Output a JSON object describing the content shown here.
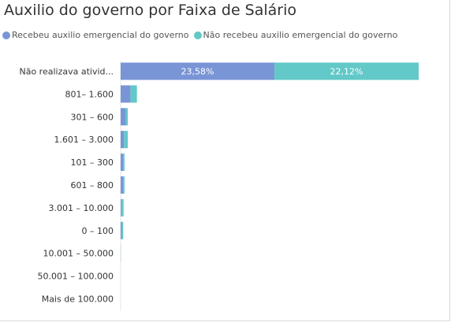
{
  "chart_data": {
    "type": "bar",
    "orientation": "horizontal",
    "stacked": true,
    "title": "Auxilio do governo por Faixa de Salário",
    "categories": [
      "Não realizava ativid...",
      "801– 1.600",
      "301 – 600",
      "1.601 – 3.000",
      "101 – 300",
      "601 – 800",
      "3.001 – 10.000",
      "0 – 100",
      "10.001 – 50.000",
      "50.001 – 100.000",
      "Mais de 100.000"
    ],
    "series": [
      {
        "name": "Recebeu auxilio emergencial do governo",
        "color": "#7a95d6",
        "values": [
          23.58,
          1.5,
          0.8,
          0.5,
          0.4,
          0.4,
          0.1,
          0.2,
          0.02,
          0,
          0
        ],
        "labels": [
          "23,58%",
          "",
          "",
          "",
          "",
          "",
          "",
          "",
          "",
          "",
          ""
        ]
      },
      {
        "name": "Não recebeu auxilio emergencial do governo",
        "color": "#63c8c8",
        "values": [
          22.12,
          1.0,
          0.3,
          0.6,
          0.2,
          0.2,
          0.35,
          0.2,
          0.02,
          0,
          0
        ],
        "labels": [
          "22,12%",
          "",
          "",
          "",
          "",
          "",
          "",
          "",
          "",
          "",
          ""
        ]
      }
    ],
    "xlim": [
      0,
      47
    ],
    "grid": false,
    "legend": "top-left"
  }
}
